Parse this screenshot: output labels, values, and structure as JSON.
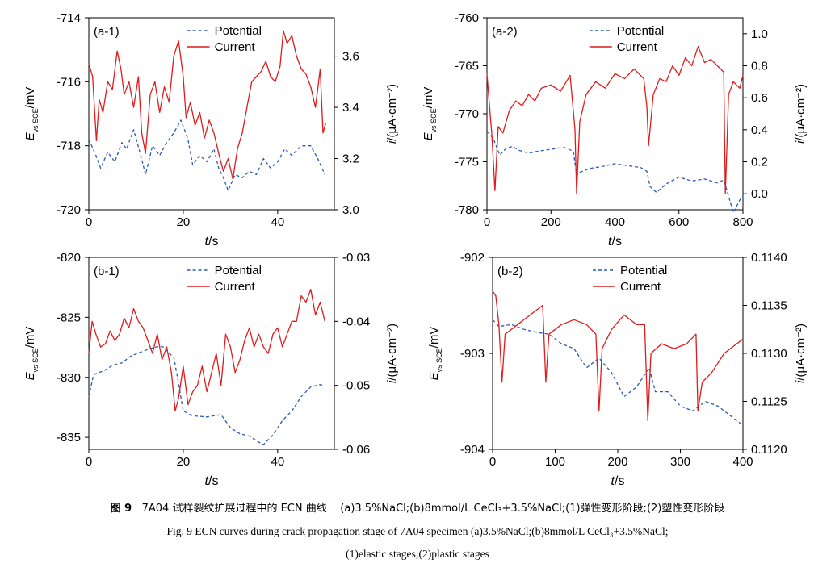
{
  "chart_data": [
    {
      "type": "line",
      "panel_label": "(a-1)",
      "xlabel_italic": "t",
      "xlabel_unit": "/s",
      "ylabel_left": "E",
      "ylabel_left_sub": "vs SCE",
      "ylabel_left_unit": "/mV",
      "ylabel_right_italic": "i",
      "ylabel_right_unit": "/(μA·cm⁻²)",
      "xlim": [
        0,
        52
      ],
      "xticks": [
        0,
        20,
        40
      ],
      "xtick_labels": [
        "0",
        "20",
        "40"
      ],
      "ylim_left": [
        -720,
        -714
      ],
      "yticks_left": [
        -720,
        -718,
        -716,
        -714
      ],
      "ytick_labels_left": [
        "-720",
        "-718",
        "-716",
        "-714"
      ],
      "ylim_right": [
        3.0,
        3.75
      ],
      "yticks_right": [
        3.0,
        3.2,
        3.4,
        3.6
      ],
      "ytick_labels_right": [
        "3.0",
        "3.2",
        "3.4",
        "3.6"
      ],
      "series": [
        {
          "name": "Potential",
          "axis": "left",
          "style": "dashed",
          "color": "#2a5cb4",
          "x": [
            0,
            1.5,
            2.5,
            4,
            5.5,
            7,
            8,
            9.5,
            11,
            12,
            13.5,
            15,
            16.5,
            18,
            19.5,
            21,
            22,
            23.5,
            25,
            26.5,
            27.5,
            28.5,
            29.5,
            31,
            32.5,
            34,
            35.5,
            37,
            38.5,
            40,
            41.5,
            43,
            45,
            47,
            48.5,
            50
          ],
          "values": [
            -717.8,
            -718.3,
            -718.7,
            -718.2,
            -718.5,
            -717.9,
            -718.1,
            -717.5,
            -718.3,
            -718.9,
            -718.0,
            -718.3,
            -717.9,
            -717.6,
            -717.2,
            -717.8,
            -718.6,
            -718.3,
            -718.5,
            -718.1,
            -718.7,
            -719.0,
            -719.4,
            -718.9,
            -719.0,
            -718.8,
            -718.9,
            -718.4,
            -718.7,
            -718.5,
            -718.1,
            -718.3,
            -718.0,
            -718.0,
            -718.4,
            -718.9
          ]
        },
        {
          "name": "Current",
          "axis": "right",
          "style": "solid",
          "color": "#e01b1b",
          "x": [
            0,
            0.8,
            1.6,
            2.2,
            3,
            4,
            5,
            6,
            6.8,
            7.5,
            8.5,
            9.5,
            10.5,
            11.2,
            12,
            13,
            14,
            15,
            16,
            17,
            18,
            19,
            20,
            20.6,
            21.5,
            22.5,
            23.5,
            24.5,
            25.5,
            26.5,
            27.5,
            28.5,
            29.5,
            30.5,
            31.5,
            32.5,
            33.5,
            34.5,
            35.5,
            36.5,
            37.5,
            38.5,
            39.5,
            40.5,
            41.2,
            42,
            43,
            44,
            45,
            46,
            47,
            48,
            49,
            49.6,
            50.2
          ],
          "values": [
            3.57,
            3.52,
            3.27,
            3.43,
            3.38,
            3.5,
            3.47,
            3.62,
            3.55,
            3.45,
            3.5,
            3.4,
            3.52,
            3.3,
            3.22,
            3.45,
            3.5,
            3.38,
            3.48,
            3.42,
            3.6,
            3.66,
            3.52,
            3.36,
            3.42,
            3.33,
            3.38,
            3.28,
            3.35,
            3.3,
            3.22,
            3.15,
            3.2,
            3.12,
            3.24,
            3.3,
            3.4,
            3.5,
            3.52,
            3.54,
            3.58,
            3.52,
            3.5,
            3.56,
            3.7,
            3.65,
            3.68,
            3.6,
            3.55,
            3.53,
            3.48,
            3.4,
            3.55,
            3.3,
            3.34
          ]
        }
      ],
      "legend": [
        "Potential",
        "Current"
      ]
    },
    {
      "type": "line",
      "panel_label": "(a-2)",
      "xlabel_italic": "t",
      "xlabel_unit": "/s",
      "ylabel_left": "E",
      "ylabel_left_sub": "vs SCE",
      "ylabel_left_unit": "/mV",
      "ylabel_right_italic": "i",
      "ylabel_right_unit": "/(μA·cm⁻²)",
      "xlim": [
        0,
        800
      ],
      "xticks": [
        0,
        200,
        400,
        600,
        800
      ],
      "xtick_labels": [
        "0",
        "200",
        "400",
        "600",
        "800"
      ],
      "ylim_left": [
        -780,
        -760
      ],
      "yticks_left": [
        -780,
        -775,
        -770,
        -765,
        -760
      ],
      "ytick_labels_left": [
        "-780",
        "-775",
        "-770",
        "-765",
        "-760"
      ],
      "ylim_right": [
        -0.1,
        1.1
      ],
      "yticks_right": [
        0.0,
        0.2,
        0.4,
        0.6,
        0.8,
        1.0
      ],
      "ytick_labels_right": [
        "0.0",
        "0.2",
        "0.4",
        "0.6",
        "0.8",
        "1.0"
      ],
      "series": [
        {
          "name": "Potential",
          "axis": "left",
          "style": "dashed",
          "color": "#2a5cb4",
          "x": [
            0,
            20,
            40,
            60,
            80,
            100,
            130,
            160,
            200,
            240,
            270,
            280,
            290,
            320,
            360,
            400,
            440,
            480,
            500,
            510,
            530,
            560,
            600,
            640,
            680,
            720,
            740,
            750,
            770,
            790,
            800
          ],
          "values": [
            -771.8,
            -772.6,
            -774.3,
            -773.6,
            -773.4,
            -773.8,
            -774.1,
            -773.9,
            -773.7,
            -773.5,
            -773.9,
            -776.4,
            -776.1,
            -775.7,
            -775.5,
            -775.2,
            -775.4,
            -775.6,
            -776.0,
            -777.6,
            -778.2,
            -777.3,
            -776.6,
            -777.0,
            -776.8,
            -777.2,
            -776.9,
            -778.0,
            -780.3,
            -779.0,
            -778.6
          ]
        },
        {
          "name": "Current",
          "axis": "right",
          "style": "solid",
          "color": "#e01b1b",
          "x": [
            0,
            5,
            15,
            25,
            35,
            50,
            70,
            90,
            110,
            130,
            150,
            170,
            200,
            230,
            260,
            275,
            280,
            290,
            310,
            340,
            370,
            400,
            430,
            460,
            490,
            500,
            505,
            520,
            540,
            560,
            580,
            600,
            620,
            640,
            660,
            680,
            700,
            720,
            740,
            745,
            755,
            770,
            790,
            800
          ],
          "values": [
            0.75,
            0.62,
            0.38,
            0.02,
            0.42,
            0.38,
            0.52,
            0.58,
            0.55,
            0.62,
            0.58,
            0.66,
            0.68,
            0.64,
            0.74,
            0.4,
            0.0,
            0.45,
            0.62,
            0.7,
            0.66,
            0.75,
            0.72,
            0.78,
            0.72,
            0.54,
            0.3,
            0.62,
            0.72,
            0.7,
            0.8,
            0.74,
            0.85,
            0.8,
            0.92,
            0.82,
            0.84,
            0.8,
            0.76,
            0.0,
            0.62,
            0.7,
            0.66,
            0.74
          ]
        }
      ],
      "legend": [
        "Potential",
        "Current"
      ]
    },
    {
      "type": "line",
      "panel_label": "(b-1)",
      "xlabel_italic": "t",
      "xlabel_unit": "/s",
      "ylabel_left": "E",
      "ylabel_left_sub": "vs SCE",
      "ylabel_left_unit": "/mV",
      "ylabel_right_italic": "i",
      "ylabel_right_unit": "/(μA·cm⁻²)",
      "xlim": [
        0,
        52
      ],
      "xticks": [
        0,
        20,
        40
      ],
      "xtick_labels": [
        "0",
        "20",
        "40"
      ],
      "ylim_left": [
        -836,
        -820
      ],
      "yticks_left": [
        -835,
        -830,
        -825,
        -820
      ],
      "ytick_labels_left": [
        "-835",
        "-830",
        "-825",
        "-820"
      ],
      "ylim_right": [
        -0.06,
        -0.03
      ],
      "yticks_right": [
        -0.06,
        -0.05,
        -0.04,
        -0.03
      ],
      "ytick_labels_right": [
        "-0.06",
        "-0.05",
        "-0.04",
        "-0.03"
      ],
      "series": [
        {
          "name": "Potential",
          "axis": "left",
          "style": "dashed",
          "color": "#2a5cb4",
          "x": [
            0,
            1,
            2,
            3,
            5,
            7,
            9,
            11,
            13,
            15,
            16,
            17,
            18,
            19,
            20,
            22,
            25,
            28,
            30,
            32,
            34,
            36,
            37,
            39,
            41,
            43,
            45,
            47,
            49,
            50
          ],
          "values": [
            -831.6,
            -829.8,
            -829.6,
            -829.5,
            -829.0,
            -828.8,
            -828.2,
            -827.9,
            -827.6,
            -827.4,
            -827.5,
            -828.0,
            -828.3,
            -830.5,
            -832.8,
            -833.2,
            -833.3,
            -833.1,
            -834.2,
            -834.7,
            -834.9,
            -835.4,
            -835.6,
            -834.8,
            -833.6,
            -832.8,
            -831.6,
            -830.8,
            -830.6,
            -830.7
          ]
        },
        {
          "name": "Current",
          "axis": "right",
          "style": "solid",
          "color": "#e01b1b",
          "x": [
            0,
            0.7,
            1.5,
            2.5,
            3.5,
            4.5,
            5.5,
            6.5,
            7.5,
            8.5,
            9.5,
            10.5,
            11.5,
            12.5,
            13.5,
            14.5,
            15.5,
            16.5,
            17.5,
            18.3,
            19,
            20,
            21,
            22,
            23,
            24,
            25,
            26,
            27,
            28,
            29,
            30,
            31,
            32,
            33,
            34,
            35,
            36,
            37,
            38,
            39,
            40,
            41,
            42,
            43,
            44,
            45,
            46,
            47,
            48,
            49,
            50
          ],
          "values": [
            -0.045,
            -0.04,
            -0.042,
            -0.044,
            -0.0435,
            -0.0415,
            -0.043,
            -0.042,
            -0.0395,
            -0.041,
            -0.038,
            -0.04,
            -0.041,
            -0.043,
            -0.045,
            -0.042,
            -0.046,
            -0.044,
            -0.048,
            -0.054,
            -0.052,
            -0.047,
            -0.053,
            -0.051,
            -0.05,
            -0.047,
            -0.051,
            -0.048,
            -0.045,
            -0.05,
            -0.042,
            -0.044,
            -0.048,
            -0.046,
            -0.043,
            -0.041,
            -0.044,
            -0.042,
            -0.044,
            -0.045,
            -0.042,
            -0.041,
            -0.044,
            -0.042,
            -0.04,
            -0.04,
            -0.036,
            -0.037,
            -0.035,
            -0.039,
            -0.037,
            -0.04
          ]
        }
      ],
      "legend": [
        "Potential",
        "Current"
      ]
    },
    {
      "type": "line",
      "panel_label": "(b-2)",
      "xlabel_italic": "t",
      "xlabel_unit": "/s",
      "ylabel_left": "E",
      "ylabel_left_sub": "vs SCE",
      "ylabel_left_unit": "/mV",
      "ylabel_right_italic": "i",
      "ylabel_right_unit": "/(μA·cm⁻²)",
      "xlim": [
        0,
        400
      ],
      "xticks": [
        0,
        100,
        200,
        300,
        400
      ],
      "xtick_labels": [
        "0",
        "100",
        "200",
        "300",
        "400"
      ],
      "ylim_left": [
        -904,
        -902
      ],
      "yticks_left": [
        -904,
        -903,
        -902
      ],
      "ytick_labels_left": [
        "-904",
        "-903",
        "-902"
      ],
      "ylim_right": [
        0.112,
        0.114
      ],
      "yticks_right": [
        0.112,
        0.1125,
        0.113,
        0.1135,
        0.114
      ],
      "ytick_labels_right": [
        "0.1120",
        "0.1125",
        "0.1130",
        "0.1135",
        "0.1140"
      ],
      "series": [
        {
          "name": "Potential",
          "axis": "left",
          "style": "dashed",
          "color": "#2a5cb4",
          "x": [
            0,
            10,
            30,
            50,
            70,
            90,
            110,
            130,
            150,
            170,
            190,
            210,
            230,
            250,
            260,
            280,
            300,
            320,
            340,
            360,
            380,
            400
          ],
          "values": [
            -902.65,
            -902.72,
            -902.7,
            -902.75,
            -902.78,
            -902.8,
            -902.9,
            -902.95,
            -903.15,
            -903.05,
            -903.2,
            -903.45,
            -903.35,
            -903.15,
            -903.4,
            -903.4,
            -903.55,
            -903.6,
            -903.5,
            -903.55,
            -903.65,
            -903.75
          ]
        },
        {
          "name": "Current",
          "axis": "right",
          "style": "solid",
          "color": "#e01b1b",
          "x": [
            0,
            5,
            10,
            15,
            20,
            40,
            60,
            80,
            85,
            90,
            110,
            130,
            150,
            165,
            170,
            175,
            190,
            210,
            230,
            243,
            248,
            253,
            270,
            290,
            310,
            325,
            328,
            335,
            350,
            370,
            390,
            400
          ],
          "values": [
            0.11365,
            0.1136,
            0.1133,
            0.1127,
            0.1132,
            0.1133,
            0.1134,
            0.1135,
            0.1127,
            0.1132,
            0.1133,
            0.11335,
            0.1133,
            0.1132,
            0.1124,
            0.11305,
            0.11325,
            0.1134,
            0.1133,
            0.1133,
            0.1123,
            0.113,
            0.1131,
            0.11305,
            0.1131,
            0.1132,
            0.1124,
            0.1127,
            0.1128,
            0.113,
            0.1131,
            0.11315
          ]
        }
      ],
      "legend": [
        "Potential",
        "Current"
      ]
    }
  ],
  "caption": {
    "cn_figno": "图 9",
    "cn_title": "7A04 试样裂纹扩展过程中的 ECN 曲线",
    "cn_detail": "(a)3.5%NaCl;(b)8mmol/L CeCl₃+3.5%NaCl;(1)弹性变形阶段;(2)塑性变形阶段",
    "en_line1": "Fig. 9   ECN curves during crack propagation stage of 7A04 specimen   (a)3.5%NaCl;(b)8mmol/L CeCl₃+3.5%NaCl;",
    "en_line2": "(1)elastic stages;(2)plastic stages"
  }
}
